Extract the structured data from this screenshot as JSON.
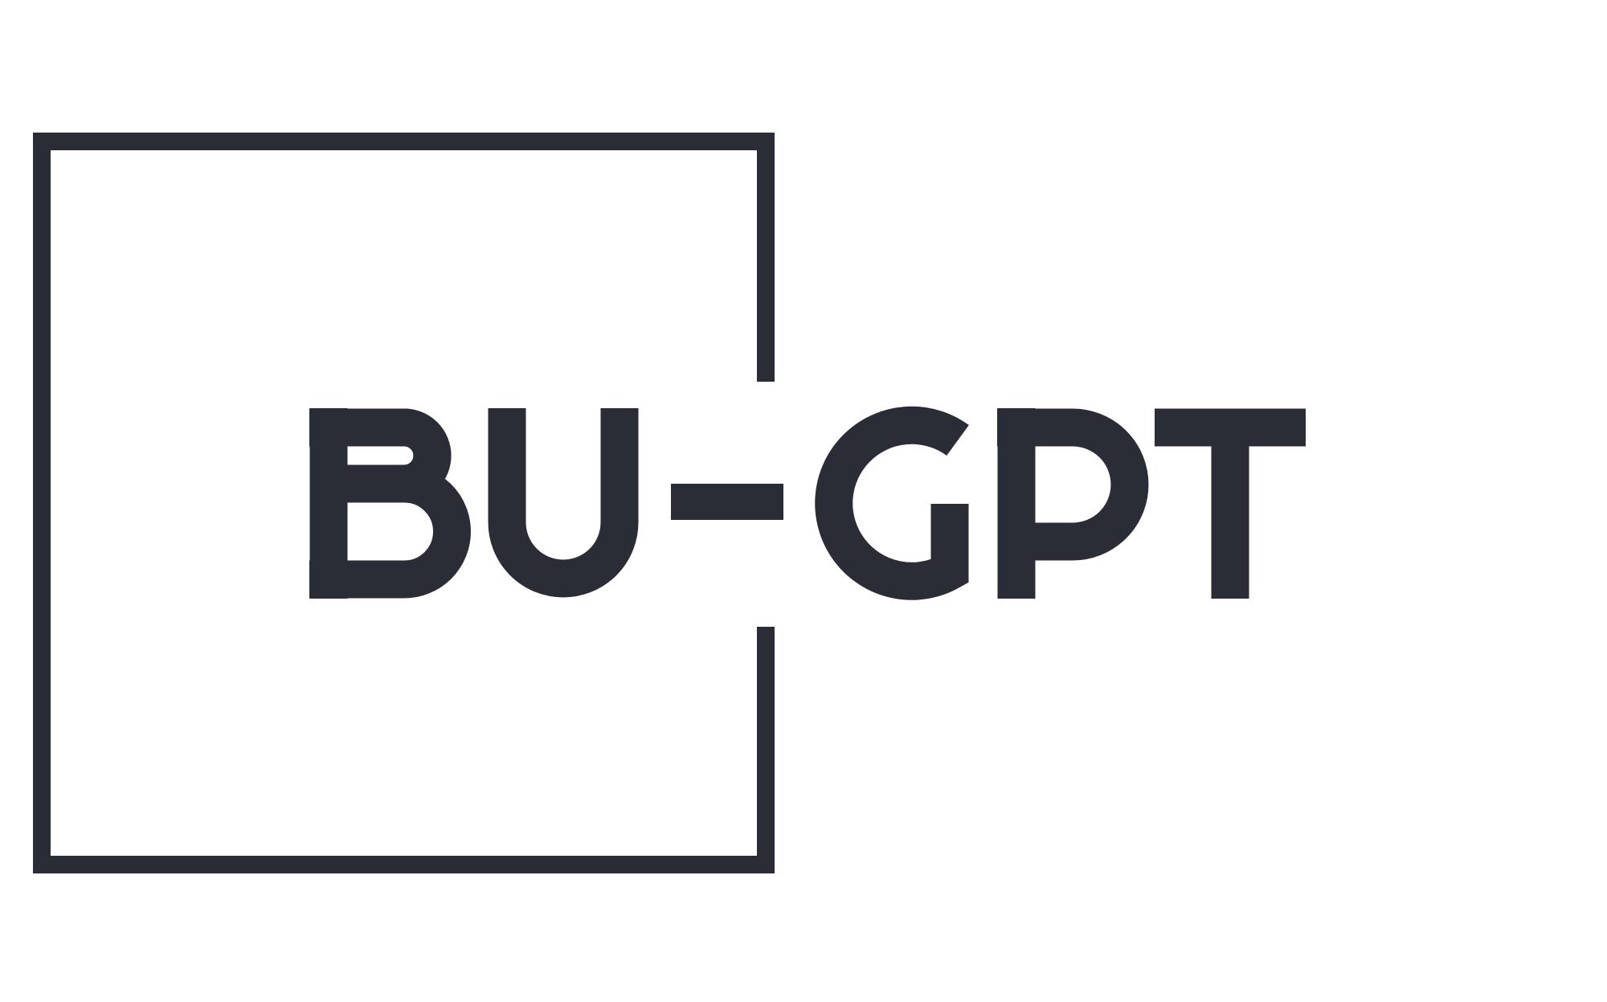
{
  "logo": {
    "wordmark": "BU-GPT",
    "color": "#2a2d36",
    "background": "#ffffff"
  }
}
